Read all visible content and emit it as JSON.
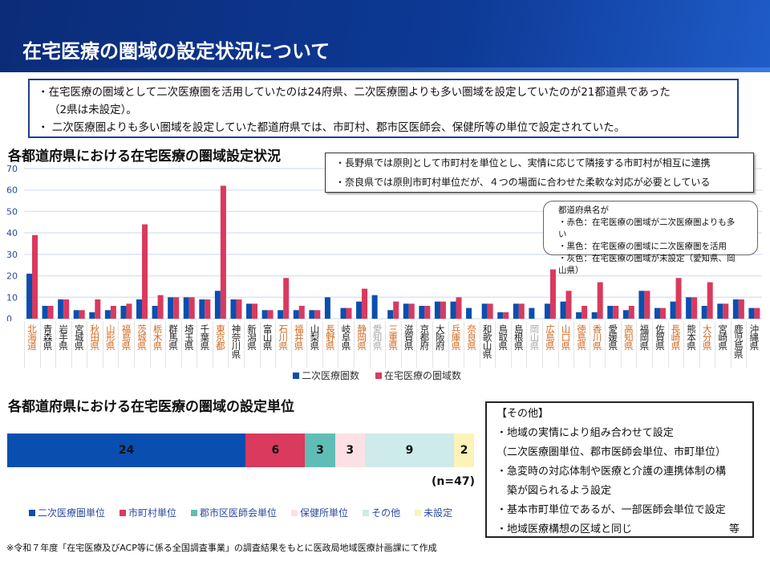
{
  "title": "在宅医療の圏域の設定状況について",
  "summary": {
    "line1": "・在宅医療の圏域として二次医療圏を活用していたのは24府県、二次医療圏よりも多い圏域を設定していたのが21都道県であった",
    "line2": "（2県は未設定）。",
    "line3": "・ 二次医療圏よりも多い圏域を設定していた都道府県では、市町村、郡市区医師会、保健所等の単位で設定されていた。"
  },
  "notes": [
    "・長野県では原則として市町村を単位とし、実情に応じて隣接する市町村が相互に連携",
    "・奈良県では原則市町村単位だが、４つの場面に合わせた柔軟な対応が必要としている"
  ],
  "color_legend": {
    "head": "都道府県名が",
    "items": [
      "・赤色：在宅医療の圏域が二次医療圏よりも多い",
      "・黒色：在宅医療の圏域に二次医療圏を活用",
      "・灰色：在宅医療の圏域が未設定（愛知県、岡山県）"
    ]
  },
  "colors": {
    "secondary": "#0a4fb0",
    "home": "#d93a5e",
    "label_red": "#d2691e",
    "label_black": "#222222",
    "label_gray": "#aaaaaa"
  },
  "chart_data": {
    "type": "bar",
    "title": "各都道府県における在宅医療の圏域設定状況",
    "ylim": [
      0,
      70
    ],
    "yticks": [
      0,
      10,
      20,
      30,
      40,
      50,
      60,
      70
    ],
    "categories": [
      "北海道",
      "青森県",
      "岩手県",
      "宮城県",
      "秋田県",
      "山形県",
      "福島県",
      "茨城県",
      "栃木県",
      "群馬県",
      "埼玉県",
      "千葉県",
      "東京都",
      "神奈川県",
      "新潟県",
      "富山県",
      "石川県",
      "福井県",
      "山梨県",
      "長野県",
      "岐阜県",
      "静岡県",
      "愛知県",
      "三重県",
      "滋賀県",
      "京都府",
      "大阪府",
      "兵庫県",
      "奈良県",
      "和歌山県",
      "鳥取県",
      "島根県",
      "岡山県",
      "広島県",
      "山口県",
      "徳島県",
      "香川県",
      "愛媛県",
      "高知県",
      "福岡県",
      "佐賀県",
      "長崎県",
      "熊本県",
      "大分県",
      "宮崎県",
      "鹿児島県",
      "沖縄県"
    ],
    "label_class": [
      "r",
      "k",
      "k",
      "k",
      "r",
      "r",
      "r",
      "r",
      "r",
      "k",
      "k",
      "k",
      "r",
      "k",
      "k",
      "k",
      "r",
      "r",
      "k",
      "r",
      "k",
      "r",
      "g",
      "r",
      "k",
      "k",
      "k",
      "r",
      "r",
      "k",
      "k",
      "k",
      "g",
      "r",
      "r",
      "r",
      "r",
      "k",
      "r",
      "k",
      "k",
      "r",
      "k",
      "r",
      "k",
      "k",
      "k"
    ],
    "series": [
      {
        "name": "二次医療圏数",
        "values": [
          21,
          6,
          9,
          4,
          3,
          4,
          6,
          9,
          6,
          10,
          10,
          9,
          13,
          9,
          7,
          4,
          4,
          4,
          4,
          10,
          5,
          8,
          11,
          4,
          7,
          6,
          8,
          8,
          5,
          7,
          3,
          7,
          5,
          7,
          8,
          3,
          3,
          6,
          4,
          13,
          5,
          8,
          10,
          6,
          7,
          9,
          5
        ]
      },
      {
        "name": "在宅医療の圏域数",
        "values": [
          39,
          6,
          9,
          4,
          9,
          6,
          7,
          44,
          11,
          10,
          10,
          9,
          62,
          9,
          7,
          4,
          19,
          6,
          4,
          null,
          5,
          14,
          null,
          8,
          7,
          6,
          8,
          10,
          null,
          7,
          3,
          7,
          null,
          23,
          13,
          6,
          17,
          6,
          6,
          13,
          5,
          19,
          10,
          17,
          7,
          9,
          5
        ]
      }
    ]
  },
  "units": {
    "title": "各都道府県における在宅医療の圏域の設定単位",
    "n": "(n=47)",
    "segments": [
      {
        "name": "二次医療圏単位",
        "value": 24,
        "color": "#0a4fb0"
      },
      {
        "name": "市町村単位",
        "value": 6,
        "color": "#d93a5e"
      },
      {
        "name": "郡市区医師会単位",
        "value": 3,
        "color": "#5fbdb5"
      },
      {
        "name": "保健所単位",
        "value": 3,
        "color": "#fde0e4"
      },
      {
        "name": "その他",
        "value": 9,
        "color": "#cfeaea"
      },
      {
        "name": "未設定",
        "value": 2,
        "color": "#fbf3b8"
      }
    ]
  },
  "other": {
    "head": "【その他】",
    "lines": [
      "・地域の実情により組み合わせて設定",
      "（二次医療圏単位、郡市医師会単位、市町単位）",
      "・急変時の対応体制や医療と介護の連携体制の構",
      "　築が図られるよう設定",
      "・基本市町単位であるが、一部医師会単位で設定",
      "・地域医療構想の区域と同じ"
    ],
    "etc": "等"
  },
  "footnote": "※令和７年度「在宅医療及びACP等に係る全国調査事業」の調査結果をもとに医政局地域医療計画課にて作成"
}
